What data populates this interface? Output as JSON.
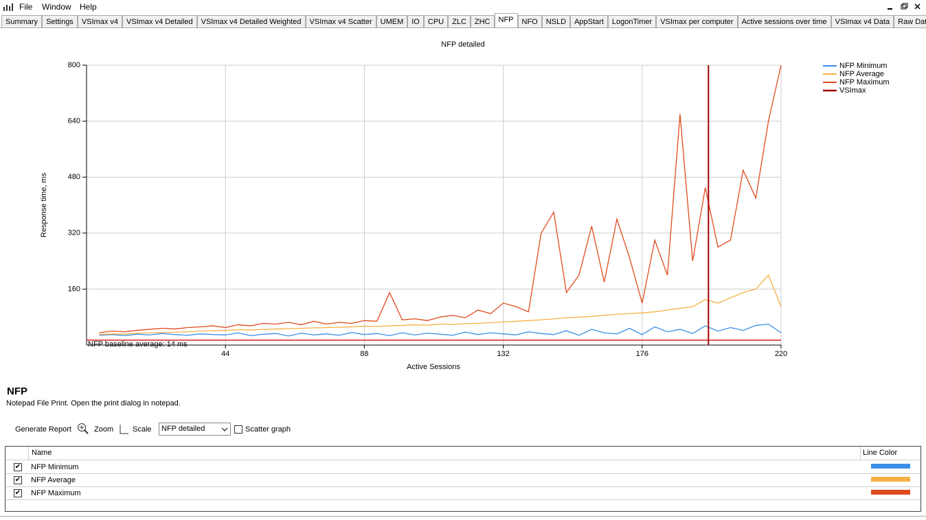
{
  "menu": [
    "File",
    "Window",
    "Help"
  ],
  "tabs": [
    "Summary",
    "Settings",
    "VSImax v4",
    "VSImax v4 Detailed",
    "VSImax v4 Detailed Weighted",
    "VSImax v4 Scatter",
    "UMEM",
    "IO",
    "CPU",
    "ZLC",
    "ZHC",
    "NFP",
    "NFO",
    "NSLD",
    "AppStart",
    "LogonTimer",
    "VSImax per computer",
    "Active sessions over time",
    "VSImax v4 Data",
    "Raw Data"
  ],
  "active_tab": 11,
  "chart_data": {
    "type": "line",
    "title": "NFP detailed",
    "x_label": "Active Sessions",
    "y_label": "Response time, ms",
    "xlim": [
      0,
      220
    ],
    "xticks": [
      44,
      88,
      132,
      176,
      220
    ],
    "ylim": [
      0,
      800
    ],
    "yticks": [
      160,
      320,
      480,
      640,
      800
    ],
    "grid": true,
    "legend": "right",
    "x": [
      4,
      8,
      12,
      16,
      20,
      24,
      28,
      32,
      36,
      40,
      44,
      48,
      52,
      56,
      60,
      64,
      68,
      72,
      76,
      80,
      84,
      88,
      92,
      96,
      100,
      104,
      108,
      112,
      116,
      120,
      124,
      128,
      132,
      136,
      140,
      144,
      148,
      152,
      156,
      160,
      164,
      168,
      172,
      176,
      180,
      184,
      188,
      192,
      196,
      200,
      204,
      208,
      212,
      216,
      220
    ],
    "series": [
      {
        "name": "NFP Minimum",
        "color": "#3a8ee6",
        "values": [
          28,
          30,
          27,
          31,
          29,
          33,
          30,
          28,
          32,
          30,
          29,
          35,
          27,
          31,
          33,
          26,
          34,
          29,
          32,
          28,
          36,
          30,
          33,
          27,
          35,
          29,
          34,
          31,
          28,
          37,
          30,
          35,
          32,
          29,
          38,
          33,
          30,
          41,
          28,
          45,
          35,
          32,
          48,
          30,
          52,
          38,
          45,
          33,
          55,
          40,
          50,
          42,
          56,
          60,
          35
        ]
      },
      {
        "name": "NFP Average",
        "color": "#f5b041",
        "values": [
          30,
          32,
          31,
          34,
          35,
          36,
          37,
          38,
          40,
          41,
          42,
          44,
          43,
          45,
          46,
          47,
          48,
          49,
          50,
          51,
          52,
          54,
          53,
          55,
          56,
          58,
          57,
          60,
          59,
          61,
          62,
          64,
          66,
          68,
          70,
          72,
          75,
          78,
          80,
          82,
          85,
          88,
          90,
          92,
          95,
          100,
          105,
          110,
          130,
          120,
          135,
          150,
          160,
          200,
          110
        ]
      },
      {
        "name": "NFP Maximum",
        "color": "#e04a1c",
        "values": [
          35,
          40,
          38,
          42,
          45,
          48,
          46,
          50,
          52,
          55,
          50,
          58,
          55,
          62,
          60,
          65,
          58,
          68,
          60,
          65,
          62,
          70,
          68,
          150,
          72,
          75,
          70,
          80,
          85,
          78,
          100,
          90,
          120,
          110,
          95,
          320,
          380,
          150,
          200,
          340,
          180,
          360,
          250,
          120,
          300,
          200,
          660,
          240,
          450,
          280,
          300,
          500,
          420,
          640,
          800
        ]
      }
    ],
    "baseline": {
      "value": 14,
      "label": "NFP baseline average: 14 ms",
      "color": "#e02020"
    },
    "vsimax": {
      "name": "VSImax",
      "x": 197,
      "color": "#a00000"
    }
  },
  "details": {
    "title": "NFP",
    "description": "Notepad File Print. Open the print dialog in notepad."
  },
  "toolbar": {
    "generate": "Generate Report",
    "zoom": "Zoom",
    "scale": "Scale",
    "selected": "NFP detailed",
    "scatter": "Scatter graph"
  },
  "table": {
    "headers": [
      "Name",
      "Line Color"
    ]
  }
}
